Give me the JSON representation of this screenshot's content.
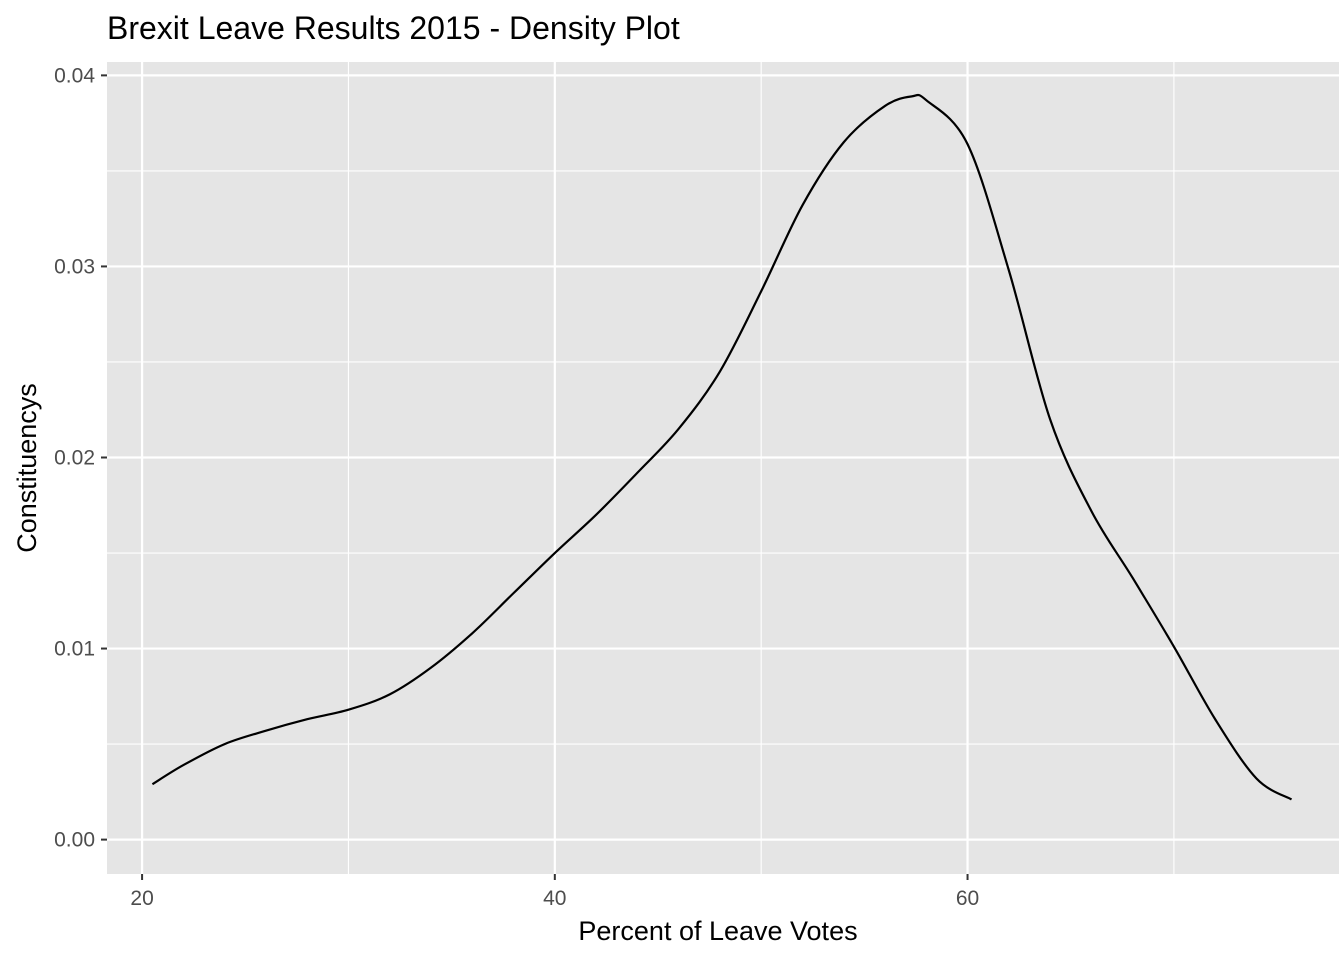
{
  "chart_data": {
    "type": "line",
    "title": "Brexit Leave Results 2015 - Density Plot",
    "xlabel": "Percent of Leave Votes",
    "ylabel": "Constituencys",
    "xlim": [
      18.3,
      78.0
    ],
    "ylim": [
      -0.0018,
      0.0407
    ],
    "x_ticks": [
      20,
      40,
      60
    ],
    "x_tick_labels": [
      "20",
      "40",
      "60"
    ],
    "x_minor_ticks": [
      30,
      50,
      70
    ],
    "y_ticks": [
      0.0,
      0.01,
      0.02,
      0.03,
      0.04
    ],
    "y_tick_labels": [
      "0.00",
      "0.01",
      "0.02",
      "0.03",
      "0.04"
    ],
    "y_minor_ticks": [
      0.005,
      0.015,
      0.025,
      0.035
    ],
    "grid": true,
    "legend": "none",
    "colors": {
      "panel": "#e5e5e5",
      "grid": "#ffffff",
      "line": "#000000",
      "tick_text": "#4d4d4d"
    },
    "series": [
      {
        "x": [
          20.5,
          22,
          24,
          26,
          28,
          30,
          32,
          34,
          36,
          38,
          40,
          42,
          44,
          46,
          48,
          50,
          52,
          54,
          56,
          57.3,
          58,
          60,
          62,
          64,
          66,
          68,
          70,
          72,
          74,
          75.7
        ],
        "y": [
          0.0029,
          0.0039,
          0.005,
          0.0057,
          0.0063,
          0.0068,
          0.0076,
          0.009,
          0.0108,
          0.0129,
          0.015,
          0.017,
          0.0192,
          0.0215,
          0.0245,
          0.0287,
          0.0332,
          0.0365,
          0.0384,
          0.0389,
          0.0387,
          0.0364,
          0.0298,
          0.022,
          0.0172,
          0.0137,
          0.0101,
          0.0063,
          0.0032,
          0.0021
        ]
      }
    ]
  }
}
